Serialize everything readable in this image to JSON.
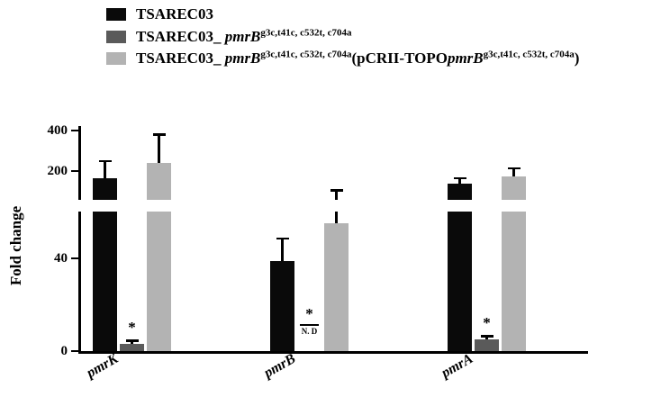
{
  "legend": {
    "items": [
      {
        "label": "TSAREC03",
        "color": "#0a0a0a"
      },
      {
        "prefix": "TSAREC03_ ",
        "gene": "pmrB",
        "superscript": "g3c,t41c, c532t, c704a",
        "color": "#5a5a5a"
      },
      {
        "prefix": "TSAREC03_ ",
        "gene": "pmrB",
        "superscript": "g3c,t41c, c532t, c704a",
        "paren_prefix": "(pCRII-TOPO",
        "paren_gene": "pmrB",
        "paren_superscript": "g3c,t41c, c532t, c704a",
        "paren_close": ")",
        "color": "#b3b3b3"
      }
    ]
  },
  "chart_data": {
    "type": "bar",
    "title": "",
    "ylabel": "Fold change",
    "xlabel": "",
    "categories": [
      "pmrK",
      "pmrB",
      "pmrA"
    ],
    "series": [
      {
        "name": "TSAREC03",
        "color": "#0a0a0a",
        "values": [
          165,
          39,
          140
        ],
        "errors": [
          90,
          10,
          30
        ]
      },
      {
        "name": "TSAREC03_ pmrB^(g3c,t41c, c532t, c704a)",
        "color": "#5a5a5a",
        "values": [
          3,
          0,
          5
        ],
        "errors": [
          2,
          0,
          2
        ],
        "annotations": [
          "*",
          "*",
          "*"
        ],
        "notes": [
          "",
          "N. D",
          ""
        ]
      },
      {
        "name": "TSAREC03_ pmrB^(g3c,t41c, c532t, c704a) (pCRII-TOPO pmrB^(g3c,t41c, c532t, c704a))",
        "color": "#b3b3b3",
        "values": [
          240,
          55,
          175
        ],
        "errors": [
          145,
          55,
          45
        ]
      }
    ],
    "y_axis": {
      "ticks": [
        0,
        40,
        200,
        400
      ],
      "ylim": [
        0,
        400
      ],
      "broken": true,
      "break_between": [
        60,
        200
      ],
      "grid": false
    },
    "legend_position": "top-left",
    "nd_value_note": "N. D"
  }
}
